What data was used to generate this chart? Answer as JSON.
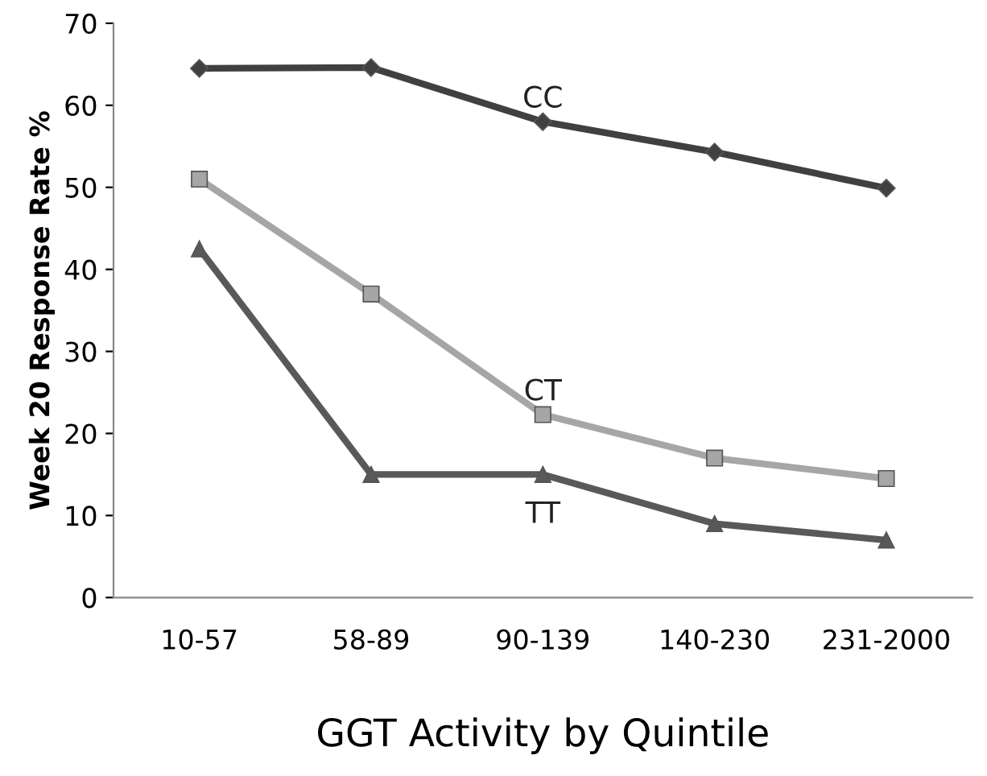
{
  "chart_data": {
    "type": "line",
    "xlabel": "GGT Activity by Quintile",
    "ylabel": "Week 20 Response Rate %",
    "categories": [
      "10-57",
      "58-89",
      "90-139",
      "140-230",
      "231-2000"
    ],
    "series": [
      {
        "name": "CC",
        "color": "#404040",
        "marker": "diamond",
        "values": [
          64.5,
          64.6,
          58,
          54.3,
          49.9
        ]
      },
      {
        "name": "CT",
        "color": "#a6a6a6",
        "marker": "square",
        "values": [
          51,
          37,
          22.3,
          17,
          14.5
        ]
      },
      {
        "name": "TT",
        "color": "#595959",
        "marker": "triangle",
        "values": [
          42.5,
          15,
          15,
          9,
          7
        ]
      }
    ],
    "ylim": [
      0,
      70
    ],
    "yticks": [
      0,
      10,
      20,
      30,
      40,
      50,
      60,
      70
    ],
    "grid": false,
    "legend": false,
    "line_style": "solid"
  }
}
